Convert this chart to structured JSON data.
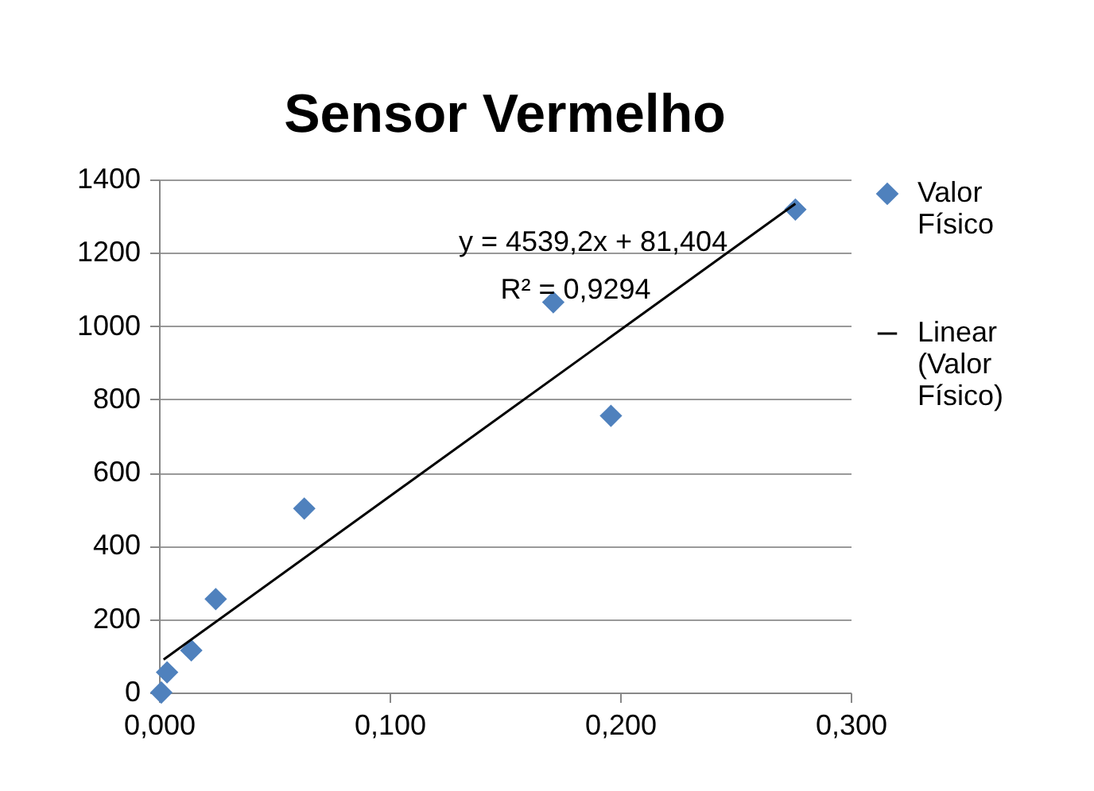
{
  "chart_data": {
    "type": "scatter",
    "title": "Sensor Vermelho",
    "annotations": [
      "y = 4539,2x + 81,404",
      "R² = 0,9294"
    ],
    "series": [
      {
        "name": "Valor Físico",
        "color": "#4f81bd",
        "marker": "diamond",
        "x": [
          0.001,
          0.0035,
          0.014,
          0.0246,
          0.063,
          0.171,
          0.196,
          0.276
        ],
        "values": [
          0,
          55,
          115,
          255,
          502,
          1065,
          755,
          1318
        ]
      },
      {
        "name": "Linear (Valor Físico)",
        "type": "line",
        "color": "#000000",
        "line_style": "solid",
        "x": [
          0.002,
          0.276
        ],
        "values": [
          90,
          1334
        ]
      }
    ],
    "xlim": [
      0,
      0.3
    ],
    "xticks": [
      {
        "value": 0,
        "label": "0,000"
      },
      {
        "value": 0.1,
        "label": "0,100"
      },
      {
        "value": 0.2,
        "label": "0,200"
      },
      {
        "value": 0.3,
        "label": "0,300"
      }
    ],
    "ylim": [
      0,
      1400
    ],
    "yticks": [
      0,
      200,
      400,
      600,
      800,
      1000,
      1200,
      1400
    ],
    "grid": "y",
    "legend": "right"
  }
}
